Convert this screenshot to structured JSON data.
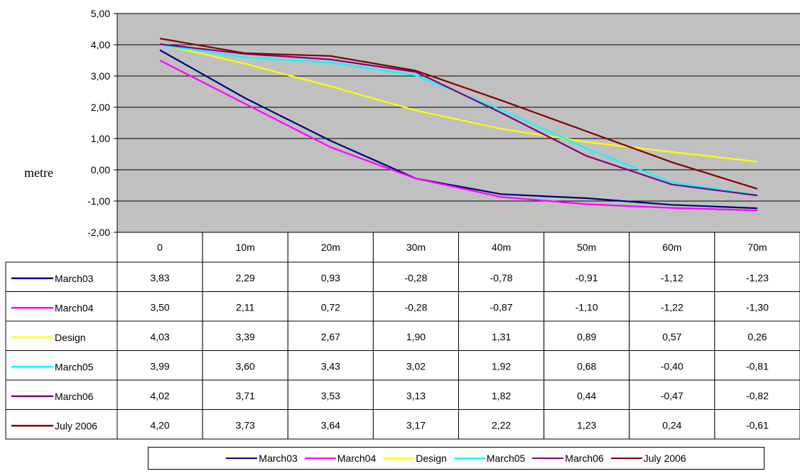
{
  "chart_data": {
    "type": "line",
    "title": "",
    "xlabel": "",
    "ylabel": "metre",
    "ylim": [
      -2,
      5
    ],
    "y_ticks": [
      "5,00",
      "4,00",
      "3,00",
      "2,00",
      "1,00",
      "0,00",
      "-1,00",
      "-2,00"
    ],
    "categories": [
      "0",
      "10m",
      "20m",
      "30m",
      "40m",
      "50m",
      "60m",
      "70m"
    ],
    "grid": true,
    "plot_background": "#c0c0c0",
    "legend_position": "bottom",
    "data_table": true,
    "series": [
      {
        "name": "March03",
        "color": "#000080",
        "values": [
          3.83,
          2.29,
          0.93,
          -0.28,
          -0.78,
          -0.91,
          -1.12,
          -1.23
        ],
        "labels": [
          "3,83",
          "2,29",
          "0,93",
          "-0,28",
          "-0,78",
          "-0,91",
          "-1,12",
          "-1,23"
        ]
      },
      {
        "name": "March04",
        "color": "#ff00ff",
        "values": [
          3.5,
          2.11,
          0.72,
          -0.28,
          -0.87,
          -1.1,
          -1.22,
          -1.3
        ],
        "labels": [
          "3,50",
          "2,11",
          "0,72",
          "-0,28",
          "-0,87",
          "-1,10",
          "-1,22",
          "-1,30"
        ]
      },
      {
        "name": "Design",
        "color": "#ffff00",
        "values": [
          4.03,
          3.39,
          2.67,
          1.9,
          1.31,
          0.89,
          0.57,
          0.26
        ],
        "labels": [
          "4,03",
          "3,39",
          "2,67",
          "1,90",
          "1,31",
          "0,89",
          "0,57",
          "0,26"
        ]
      },
      {
        "name": "March05",
        "color": "#00ffff",
        "values": [
          3.99,
          3.6,
          3.43,
          3.02,
          1.92,
          0.68,
          -0.4,
          -0.81
        ],
        "labels": [
          "3,99",
          "3,60",
          "3,43",
          "3,02",
          "1,92",
          "0,68",
          "-0,40",
          "-0,81"
        ]
      },
      {
        "name": "March06",
        "color": "#800080",
        "values": [
          4.02,
          3.71,
          3.53,
          3.13,
          1.82,
          0.44,
          -0.47,
          -0.82
        ],
        "labels": [
          "4,02",
          "3,71",
          "3,53",
          "3,13",
          "1,82",
          "0,44",
          "-0,47",
          "-0,82"
        ]
      },
      {
        "name": "July 2006",
        "color": "#800000",
        "values": [
          4.2,
          3.73,
          3.64,
          3.17,
          2.22,
          1.23,
          0.24,
          -0.61
        ],
        "labels": [
          "4,20",
          "3,73",
          "3,64",
          "3,17",
          "2,22",
          "1,23",
          "0,24",
          "-0,61"
        ]
      }
    ]
  }
}
